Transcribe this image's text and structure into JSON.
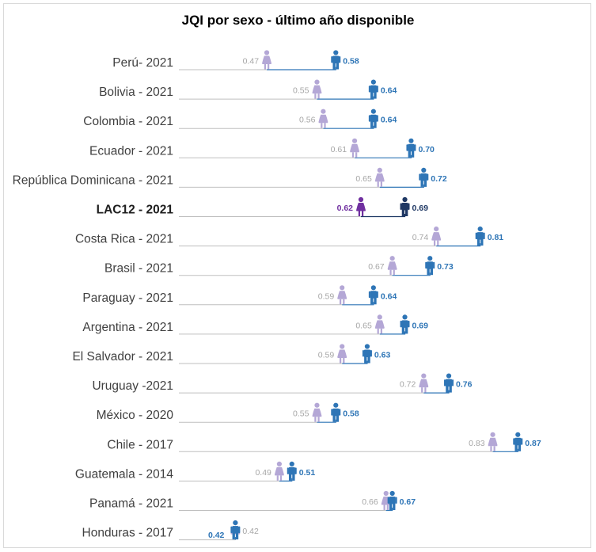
{
  "chart_data": {
    "type": "dot-plot",
    "title": "JQI por sexo - último año disponible",
    "xlabel": "",
    "ylabel": "",
    "xlim": [
      0.33,
      0.91
    ],
    "grid": false,
    "legend": "none",
    "series": [
      {
        "name": "Mujeres",
        "icon": "woman-icon",
        "color": "#b4a7d6"
      },
      {
        "name": "Hombres",
        "icon": "man-icon",
        "color": "#2e75b6"
      }
    ],
    "highlight_colors": {
      "female": "#7030a0",
      "male": "#1f3864"
    },
    "categories": [
      "Perú- 2021",
      "Bolivia - 2021",
      "Colombia - 2021",
      "Ecuador - 2021",
      "República Dominicana - 2021",
      "LAC12 - 2021",
      "Costa Rica - 2021",
      "Brasil - 2021",
      "Paraguay - 2021",
      "Argentina - 2021",
      "El Salvador - 2021",
      "Uruguay -2021",
      "México - 2020",
      "Chile - 2017",
      "Guatemala - 2014",
      "Panamá - 2021",
      "Honduras - 2017"
    ],
    "highlight_category": "LAC12 - 2021",
    "female_values": [
      0.47,
      0.55,
      0.56,
      0.61,
      0.65,
      0.62,
      0.74,
      0.67,
      0.59,
      0.65,
      0.59,
      0.72,
      0.55,
      0.83,
      0.49,
      0.66,
      0.42
    ],
    "male_values": [
      0.58,
      0.64,
      0.64,
      0.7,
      0.72,
      0.69,
      0.81,
      0.73,
      0.64,
      0.69,
      0.63,
      0.76,
      0.58,
      0.87,
      0.51,
      0.67,
      0.42
    ],
    "female_labels": [
      "0.47",
      "0.55",
      "0.56",
      "0.61",
      "0.65",
      "0.62",
      "0.74",
      "0.67",
      "0.59",
      "0.65",
      "0.59",
      "0.72",
      "0.55",
      "0.83",
      "0.49",
      "0.66",
      "0.42"
    ],
    "male_labels": [
      "0.58",
      "0.64",
      "0.64",
      "0.70",
      "0.72",
      "0.69",
      "0.81",
      "0.73",
      "0.64",
      "0.69",
      "0.63",
      "0.76",
      "0.58",
      "0.87",
      "0.51",
      "0.67",
      "0.42"
    ]
  }
}
